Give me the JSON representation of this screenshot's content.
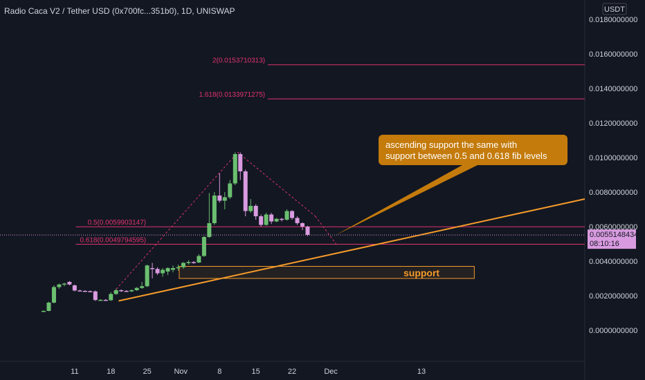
{
  "header": {
    "title": "Radio Caca V2 / Tether USD (0x700fc...351b0), 1D, UNISWAP"
  },
  "axis": {
    "currency": "USDT"
  },
  "colors": {
    "background": "#131722",
    "up": "#6bbf6f",
    "down": "#d99be0",
    "fib": "#e0336f",
    "trend": "#f59b2a",
    "callout": "#c47b0c",
    "support_zone_border": "#f59b2a",
    "text": "#d1d4dc"
  },
  "chart_data": {
    "type": "candlestick",
    "x_tick_labels": [
      "11",
      "18",
      "25",
      "Nov",
      "8",
      "15",
      "22",
      "Dec",
      "13"
    ],
    "y_tick_labels": [
      "0.0180000000",
      "0.0160000000",
      "0.0140000000",
      "0.0120000000",
      "0.0100000000",
      "0.0080000000",
      "0.0060000000",
      "0.0040000000",
      "0.0020000000",
      "0.0000000000"
    ],
    "ylim": [
      -0.0022,
      0.0188
    ],
    "y_ticks": [
      0.018,
      0.016,
      0.014,
      0.012,
      0.01,
      0.008,
      0.006,
      0.004,
      0.002,
      0.0
    ],
    "candles": [
      {
        "o": 0.0011,
        "h": 0.00115,
        "l": 0.00108,
        "c": 0.00112
      },
      {
        "o": 0.00112,
        "h": 0.00165,
        "l": 0.0011,
        "c": 0.0016
      },
      {
        "o": 0.0016,
        "h": 0.0026,
        "l": 0.00155,
        "c": 0.0025
      },
      {
        "o": 0.0025,
        "h": 0.0027,
        "l": 0.0024,
        "c": 0.00265
      },
      {
        "o": 0.00265,
        "h": 0.00275,
        "l": 0.00255,
        "c": 0.0027
      },
      {
        "o": 0.0028,
        "h": 0.00285,
        "l": 0.0026,
        "c": 0.00265
      },
      {
        "o": 0.0026,
        "h": 0.00265,
        "l": 0.00225,
        "c": 0.0023
      },
      {
        "o": 0.0023,
        "h": 0.00235,
        "l": 0.00225,
        "c": 0.00228
      },
      {
        "o": 0.00228,
        "h": 0.00232,
        "l": 0.00224,
        "c": 0.00226
      },
      {
        "o": 0.00226,
        "h": 0.0023,
        "l": 0.00222,
        "c": 0.00225
      },
      {
        "o": 0.00225,
        "h": 0.0023,
        "l": 0.0017,
        "c": 0.00175
      },
      {
        "o": 0.00175,
        "h": 0.0018,
        "l": 0.00172,
        "c": 0.00176
      },
      {
        "o": 0.00176,
        "h": 0.0018,
        "l": 0.00172,
        "c": 0.00174
      },
      {
        "o": 0.00174,
        "h": 0.0022,
        "l": 0.0017,
        "c": 0.0021
      },
      {
        "o": 0.0021,
        "h": 0.0024,
        "l": 0.00205,
        "c": 0.00232
      },
      {
        "o": 0.00232,
        "h": 0.00236,
        "l": 0.00222,
        "c": 0.00228
      },
      {
        "o": 0.00228,
        "h": 0.00232,
        "l": 0.00222,
        "c": 0.00225
      },
      {
        "o": 0.00225,
        "h": 0.00236,
        "l": 0.00222,
        "c": 0.00232
      },
      {
        "o": 0.00232,
        "h": 0.0025,
        "l": 0.00228,
        "c": 0.00245
      },
      {
        "o": 0.00245,
        "h": 0.0028,
        "l": 0.0024,
        "c": 0.00255
      },
      {
        "o": 0.00255,
        "h": 0.0038,
        "l": 0.0025,
        "c": 0.00375
      },
      {
        "o": 0.0036,
        "h": 0.0039,
        "l": 0.003,
        "c": 0.00355
      },
      {
        "o": 0.00355,
        "h": 0.00365,
        "l": 0.0032,
        "c": 0.0033
      },
      {
        "o": 0.0033,
        "h": 0.0036,
        "l": 0.0031,
        "c": 0.0035
      },
      {
        "o": 0.0034,
        "h": 0.00365,
        "l": 0.0032,
        "c": 0.0036
      },
      {
        "o": 0.0035,
        "h": 0.00375,
        "l": 0.00335,
        "c": 0.0036
      },
      {
        "o": 0.0036,
        "h": 0.0038,
        "l": 0.00345,
        "c": 0.00365
      },
      {
        "o": 0.00365,
        "h": 0.00395,
        "l": 0.00355,
        "c": 0.0039
      },
      {
        "o": 0.0039,
        "h": 0.00405,
        "l": 0.0038,
        "c": 0.00395
      },
      {
        "o": 0.00395,
        "h": 0.004,
        "l": 0.00385,
        "c": 0.00392
      },
      {
        "o": 0.00392,
        "h": 0.0044,
        "l": 0.0039,
        "c": 0.0043
      },
      {
        "o": 0.0043,
        "h": 0.00545,
        "l": 0.00425,
        "c": 0.0054
      },
      {
        "o": 0.0054,
        "h": 0.00795,
        "l": 0.00535,
        "c": 0.0062
      },
      {
        "o": 0.0062,
        "h": 0.008,
        "l": 0.0061,
        "c": 0.0078
      },
      {
        "o": 0.0078,
        "h": 0.0091,
        "l": 0.0074,
        "c": 0.0075
      },
      {
        "o": 0.0075,
        "h": 0.008,
        "l": 0.007,
        "c": 0.0077
      },
      {
        "o": 0.0077,
        "h": 0.0087,
        "l": 0.0076,
        "c": 0.0085
      },
      {
        "o": 0.0085,
        "h": 0.0103,
        "l": 0.0084,
        "c": 0.0102
      },
      {
        "o": 0.0102,
        "h": 0.0103,
        "l": 0.0087,
        "c": 0.0092
      },
      {
        "o": 0.0092,
        "h": 0.0093,
        "l": 0.0066,
        "c": 0.0069
      },
      {
        "o": 0.0069,
        "h": 0.0076,
        "l": 0.0068,
        "c": 0.0072
      },
      {
        "o": 0.0072,
        "h": 0.0073,
        "l": 0.0064,
        "c": 0.0066
      },
      {
        "o": 0.0066,
        "h": 0.0067,
        "l": 0.006,
        "c": 0.0061
      },
      {
        "o": 0.0061,
        "h": 0.0068,
        "l": 0.00605,
        "c": 0.0067
      },
      {
        "o": 0.0067,
        "h": 0.0068,
        "l": 0.00615,
        "c": 0.0063
      },
      {
        "o": 0.0063,
        "h": 0.0065,
        "l": 0.00625,
        "c": 0.00645
      },
      {
        "o": 0.00645,
        "h": 0.0065,
        "l": 0.0063,
        "c": 0.0064
      },
      {
        "o": 0.0064,
        "h": 0.007,
        "l": 0.00635,
        "c": 0.0069
      },
      {
        "o": 0.0069,
        "h": 0.00695,
        "l": 0.0064,
        "c": 0.0065
      },
      {
        "o": 0.0065,
        "h": 0.0066,
        "l": 0.0061,
        "c": 0.0062
      },
      {
        "o": 0.0062,
        "h": 0.00625,
        "l": 0.0058,
        "c": 0.006
      },
      {
        "o": 0.006,
        "h": 0.00605,
        "l": 0.00545,
        "c": 0.00552
      }
    ],
    "fib_levels": [
      {
        "label": "2(0.0153710313)",
        "value": 0.0153710313
      },
      {
        "label": "1.618(0.0133971275)",
        "value": 0.0133971275
      },
      {
        "label": "0.5(0.0059903147)",
        "value": 0.0059903147
      },
      {
        "label": "0.618(0.0049794595)",
        "value": 0.0049794595
      }
    ],
    "current_price": {
      "value": 0.0055148434,
      "label": "0.0055148434",
      "countdown": "08:10:16"
    },
    "annotations": {
      "callout": [
        "ascending support the same with",
        "support between 0.5 and 0.618 fib levels"
      ],
      "support_label": "support"
    }
  }
}
